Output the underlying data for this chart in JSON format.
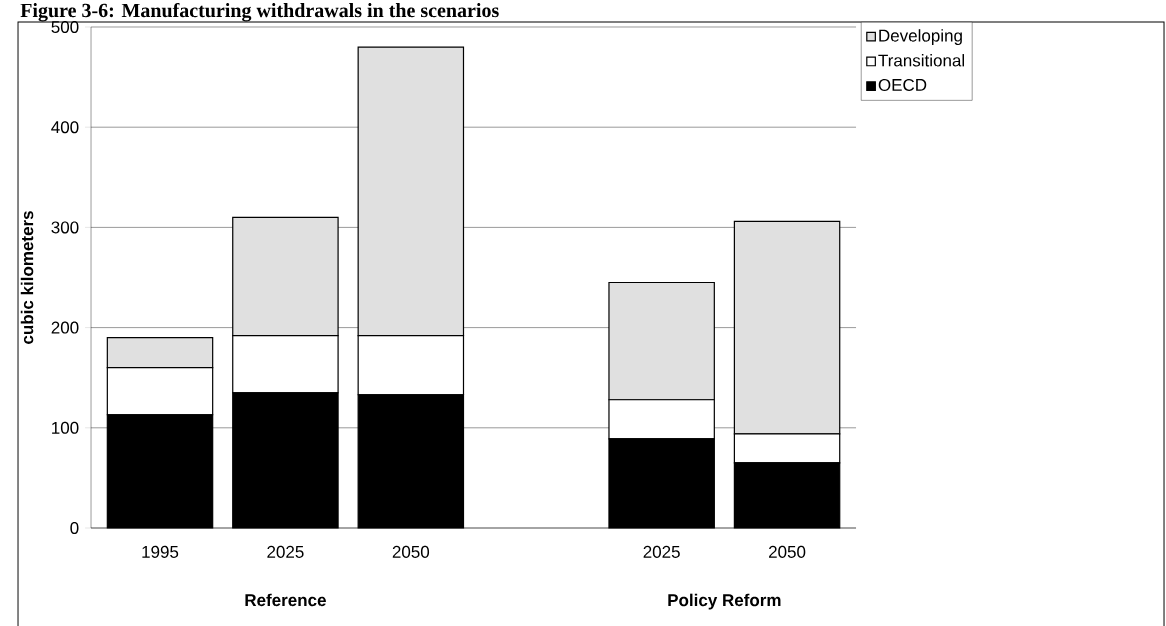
{
  "chart_data": {
    "type": "bar",
    "stacked": true,
    "title": "Figure 3-6: Manufacturing withdrawals in the scenarios",
    "ylabel": "cubic kilometers",
    "categories": [
      "1995",
      "2025",
      "2050",
      null,
      "2025",
      "2050"
    ],
    "series": [
      {
        "name": "OECD",
        "color": "#000000",
        "values": [
          113,
          135,
          133,
          null,
          89,
          65
        ]
      },
      {
        "name": "Transitional",
        "color": "#ffffff",
        "values": [
          47,
          57,
          59,
          null,
          39,
          29
        ]
      },
      {
        "name": "Developing",
        "color": "#e0e0e0",
        "values": [
          30,
          118,
          288,
          null,
          117,
          212
        ]
      }
    ],
    "ylim": [
      0,
      500
    ],
    "yticks": [
      0,
      100,
      200,
      300,
      400,
      500
    ],
    "grid": "y",
    "legend": "top right",
    "annotations": [
      "Reference",
      "Policy Reform"
    ]
  }
}
